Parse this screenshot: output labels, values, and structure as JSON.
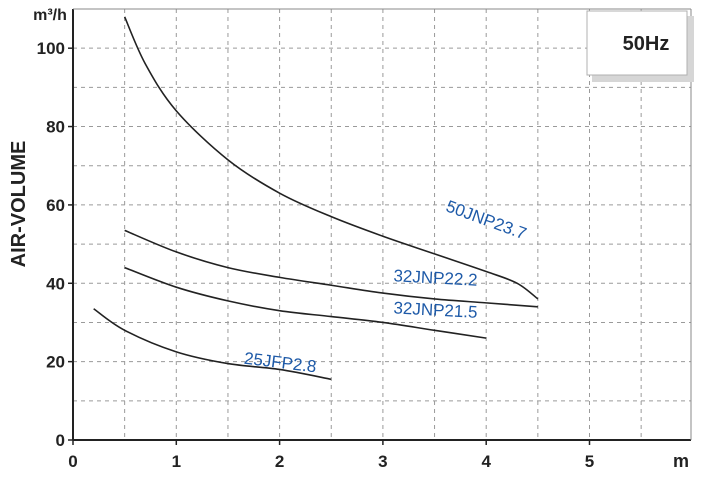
{
  "chart_data": {
    "type": "line",
    "title": "",
    "badge": "50Hz",
    "xlabel": "m",
    "ylabel": "AIR-VOLUME",
    "yunit": "m³/h",
    "xlim": [
      0,
      6
    ],
    "ylim": [
      0,
      110
    ],
    "xticks": [
      0,
      1,
      2,
      3,
      4,
      5
    ],
    "yticks": [
      0,
      20,
      40,
      60,
      80,
      100
    ],
    "grid": "dashed",
    "series": [
      {
        "name": "50JNP23.7",
        "x": [
          0.5,
          0.7,
          1.0,
          1.5,
          2.0,
          2.5,
          3.0,
          3.5,
          4.0,
          4.3,
          4.5
        ],
        "y": [
          108,
          96,
          84,
          71.5,
          63,
          57,
          52,
          47.5,
          43,
          40,
          36
        ]
      },
      {
        "name": "32JNP22.2",
        "x": [
          0.5,
          1.0,
          1.5,
          2.0,
          2.5,
          3.0,
          3.5,
          4.0,
          4.5
        ],
        "y": [
          53.5,
          48,
          44,
          41.5,
          39.5,
          37.5,
          36,
          35,
          34
        ]
      },
      {
        "name": "32JNP21.5",
        "x": [
          0.5,
          1.0,
          1.5,
          2.0,
          2.5,
          3.0,
          3.5,
          4.0
        ],
        "y": [
          44,
          39,
          35.5,
          33,
          31.5,
          30,
          28,
          26
        ]
      },
      {
        "name": "25JFP2.8",
        "x": [
          0.2,
          0.5,
          1.0,
          1.5,
          2.0,
          2.5
        ],
        "y": [
          33.5,
          28,
          22.5,
          19.5,
          18,
          15.5
        ]
      }
    ]
  }
}
